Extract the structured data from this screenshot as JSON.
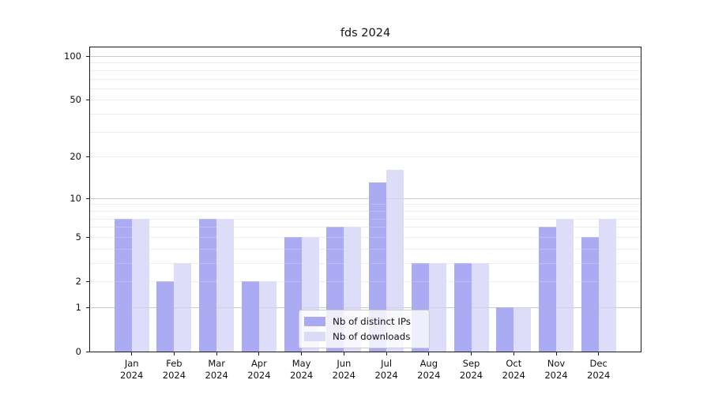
{
  "chart_data": {
    "type": "bar",
    "title": "fds 2024",
    "year": "2024",
    "categories": [
      "Jan",
      "Feb",
      "Mar",
      "Apr",
      "May",
      "Jun",
      "Jul",
      "Aug",
      "Sep",
      "Oct",
      "Nov",
      "Dec"
    ],
    "series": [
      {
        "name": "Nb of distinct IPs",
        "bar_color": "#9898f2",
        "swatch_color": "#a9a9f4",
        "values": [
          7,
          2,
          7,
          2,
          5,
          6,
          13,
          3,
          3,
          1,
          6,
          5
        ]
      },
      {
        "name": "Nb of downloads",
        "bar_color": "#d6d6f9",
        "swatch_color": "#dcdcf9",
        "values": [
          7,
          3,
          7,
          2,
          5,
          6,
          16,
          3,
          3,
          1,
          7,
          7
        ]
      }
    ],
    "xlabel": "",
    "ylabel": "",
    "yscale": "log1p",
    "ylim": [
      0,
      115
    ],
    "yticks": [
      0,
      1,
      2,
      5,
      10,
      20,
      50,
      100
    ],
    "major_gridlines": [
      1,
      10,
      100
    ],
    "minor_gridlines": [
      2,
      3,
      4,
      5,
      6,
      7,
      8,
      9,
      20,
      30,
      40,
      50,
      60,
      70,
      80,
      90
    ],
    "grid": "on",
    "legend_position": "lower-center-inside"
  },
  "colors": {
    "axis": "#1a1a1a",
    "grid_major": "#c9c9c9",
    "grid_minor": "#ededed",
    "text": "#111111",
    "legend_border": "#cccccc"
  }
}
